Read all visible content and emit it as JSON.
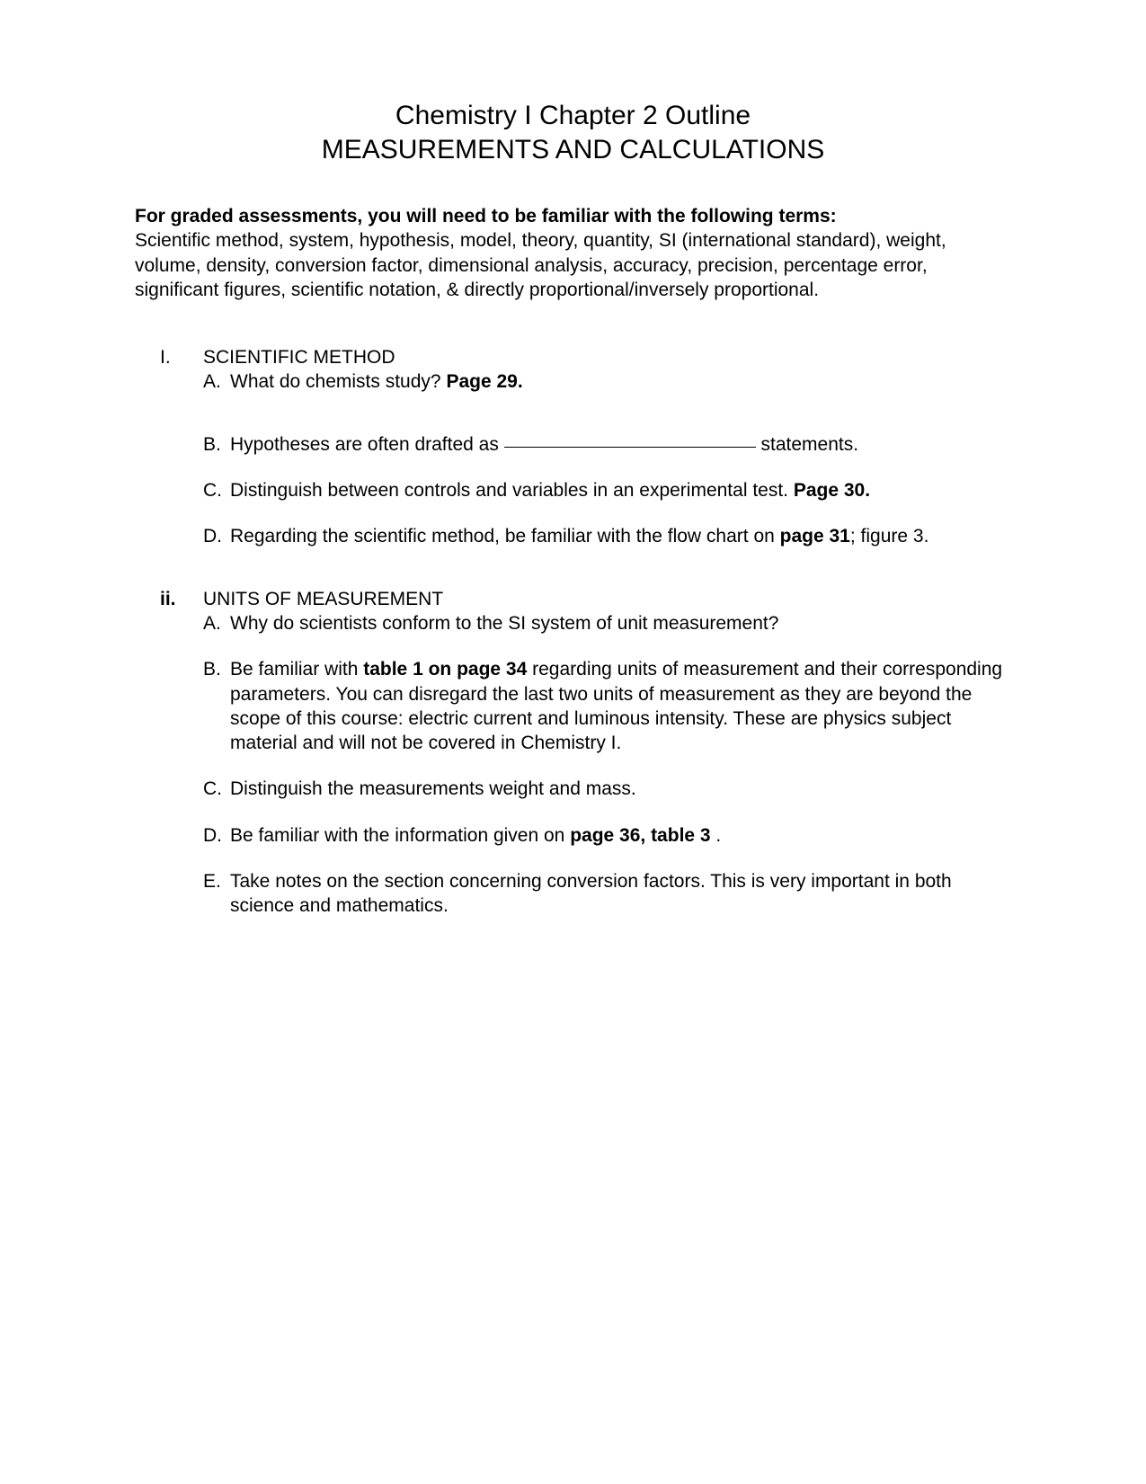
{
  "title": {
    "line1": "Chemistry I Chapter 2 Outline",
    "line2": "MEASUREMENTS AND CALCULATIONS"
  },
  "intro": {
    "heading": "For graded assessments, you will need to be familiar with the following terms:",
    "body": "Scientific method, system, hypothesis, model, theory, quantity, SI (international standard), weight, volume, density, conversion factor, dimensional analysis, accuracy, precision, percentage error, significant figures, scientific notation, & directly proportional/inversely proportional."
  },
  "sections": {
    "I": {
      "marker": "I.",
      "title": "SCIENTIFIC METHOD",
      "items": {
        "A": {
          "marker": "A.",
          "text_before": "What do chemists study?  ",
          "bold": "Page 29."
        },
        "B": {
          "marker": "B.",
          "text_before": "Hypotheses are often drafted as ",
          "text_after": " statements."
        },
        "C": {
          "marker": "C.",
          "text_before": "Distinguish between controls and variables in an experimental test. ",
          "bold": "Page 30."
        },
        "D": {
          "marker": "D.",
          "text_before": "Regarding the scientific method, be familiar with the flow chart on ",
          "bold": "page 31",
          "text_after": "; figure 3."
        }
      }
    },
    "ii": {
      "marker": "ii.",
      "title": "UNITS OF MEASUREMENT",
      "items": {
        "A": {
          "marker": "A.",
          "text": "Why do scientists conform to the SI system of unit measurement?"
        },
        "B": {
          "marker": "B.",
          "text_before": "Be familiar with ",
          "bold": "table 1 on page 34",
          "text_after": " regarding units of measurement and their corresponding parameters.  You can disregard the last two units of measurement as they are beyond the scope of this course: electric current and luminous intensity. These are physics subject material and will not be covered in Chemistry I."
        },
        "C": {
          "marker": "C.",
          "text": "Distinguish the measurements weight and mass."
        },
        "D": {
          "marker": "D.",
          "text_before": "Be familiar with the information given on ",
          "bold": "page 36, table 3",
          "text_after": " ."
        },
        "E": {
          "marker": "E.",
          "text": " Take notes on the section concerning conversion factors.  This is very important in both science and mathematics."
        }
      }
    }
  }
}
